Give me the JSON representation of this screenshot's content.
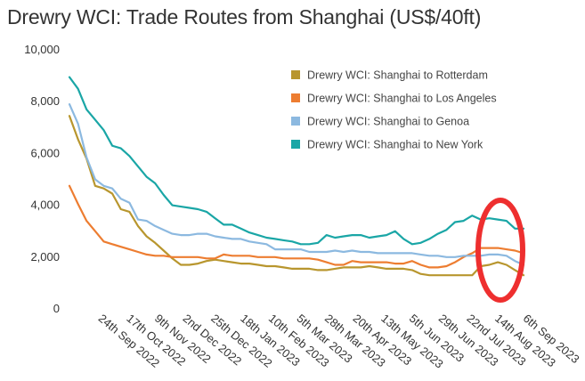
{
  "chart_data": {
    "type": "line",
    "title": "Drewry WCI: Trade Routes from Shanghai (US$/40ft)",
    "xlabel": "",
    "ylabel": "",
    "ylim": [
      0,
      10000
    ],
    "yticks": [
      "0",
      "2,000",
      "4,000",
      "6,000",
      "8,000",
      "10,000"
    ],
    "ytick_values": [
      0,
      2000,
      4000,
      6000,
      8000,
      10000
    ],
    "x": [
      "2022-09-01",
      "2022-09-08",
      "2022-09-15",
      "2022-09-22",
      "2022-09-29",
      "2022-10-06",
      "2022-10-13",
      "2022-10-20",
      "2022-10-27",
      "2022-11-03",
      "2022-11-10",
      "2022-11-17",
      "2022-11-24",
      "2022-12-01",
      "2022-12-08",
      "2022-12-15",
      "2022-12-22",
      "2022-12-29",
      "2023-01-05",
      "2023-01-12",
      "2023-01-19",
      "2023-01-26",
      "2023-02-02",
      "2023-02-09",
      "2023-02-16",
      "2023-02-23",
      "2023-03-02",
      "2023-03-09",
      "2023-03-16",
      "2023-03-23",
      "2023-03-30",
      "2023-04-06",
      "2023-04-13",
      "2023-04-20",
      "2023-04-27",
      "2023-05-04",
      "2023-05-11",
      "2023-05-18",
      "2023-05-25",
      "2023-06-01",
      "2023-06-08",
      "2023-06-15",
      "2023-06-22",
      "2023-06-29",
      "2023-07-06",
      "2023-07-13",
      "2023-07-20",
      "2023-07-27",
      "2023-08-03",
      "2023-08-10",
      "2023-08-17",
      "2023-08-24",
      "2023-08-31",
      "2023-09-07"
    ],
    "xticks": [
      "24th Sep 2022",
      "17th Oct 2022",
      "9th Nov 2022",
      "2nd Dec 2022",
      "25th Dec 2022",
      "18th Jan 2023",
      "10th Feb 2023",
      "5th Mar 2023",
      "28th Mar 2023",
      "20th Apr 2023",
      "13th May 2023",
      "5th Jun 2023",
      "29th Jun 2023",
      "22nd Jul 2023",
      "14th Aug 2023",
      "6th Sep 2023"
    ],
    "xtick_dates": [
      "2022-09-24",
      "2022-10-17",
      "2022-11-09",
      "2022-12-02",
      "2022-12-25",
      "2023-01-18",
      "2023-02-10",
      "2023-03-05",
      "2023-03-28",
      "2023-04-20",
      "2023-05-13",
      "2023-06-05",
      "2023-06-29",
      "2023-07-22",
      "2023-08-14",
      "2023-09-06"
    ],
    "series": [
      {
        "name": "Drewry WCI: Shanghai to Rotterdam",
        "color": "#b8962e",
        "values": [
          7450,
          6550,
          5800,
          4750,
          4650,
          4450,
          3850,
          3750,
          3200,
          2800,
          2550,
          2250,
          1950,
          1700,
          1700,
          1750,
          1850,
          1900,
          1850,
          1800,
          1750,
          1750,
          1700,
          1650,
          1650,
          1600,
          1550,
          1550,
          1550,
          1500,
          1500,
          1550,
          1600,
          1600,
          1600,
          1650,
          1600,
          1550,
          1550,
          1550,
          1500,
          1350,
          1300,
          1300,
          1300,
          1300,
          1300,
          1300,
          1650,
          1700,
          1800,
          1700,
          1500,
          1300
        ]
      },
      {
        "name": "Drewry WCI: Shanghai to Los Angeles",
        "color": "#ed7d31",
        "values": [
          4750,
          4050,
          3400,
          3000,
          2600,
          2500,
          2400,
          2300,
          2200,
          2100,
          2050,
          2050,
          2000,
          2000,
          2000,
          2000,
          1950,
          1950,
          2100,
          2050,
          2050,
          2050,
          2000,
          2000,
          2000,
          1950,
          1950,
          1950,
          1950,
          1900,
          1800,
          1700,
          1700,
          1850,
          1800,
          1800,
          1800,
          1800,
          1750,
          1750,
          1850,
          1700,
          1600,
          1600,
          1650,
          1800,
          2000,
          2150,
          2350,
          2350,
          2350,
          2300,
          2250,
          2150
        ]
      },
      {
        "name": "Drewry WCI: Shanghai to Genoa",
        "color": "#8cb9e0",
        "values": [
          7900,
          7150,
          5850,
          5000,
          4750,
          4650,
          4250,
          4100,
          3450,
          3400,
          3200,
          3050,
          2900,
          2850,
          2850,
          2900,
          2900,
          2800,
          2750,
          2700,
          2700,
          2600,
          2550,
          2500,
          2300,
          2300,
          2300,
          2300,
          2200,
          2200,
          2200,
          2250,
          2200,
          2250,
          2200,
          2200,
          2150,
          2150,
          2150,
          2150,
          2150,
          2100,
          2050,
          2050,
          2000,
          2000,
          2050,
          2050,
          2050,
          2100,
          2100,
          2050,
          1850,
          1700
        ]
      },
      {
        "name": "Drewry WCI: Shanghai to New York",
        "color": "#1aa6a6",
        "values": [
          8950,
          8500,
          7700,
          7300,
          6900,
          6300,
          6200,
          5900,
          5500,
          5100,
          4850,
          4400,
          4000,
          3950,
          3900,
          3850,
          3750,
          3500,
          3250,
          3250,
          3100,
          2950,
          2850,
          2750,
          2700,
          2650,
          2600,
          2500,
          2500,
          2550,
          2850,
          2750,
          2800,
          2850,
          2850,
          2750,
          2800,
          2850,
          3000,
          2700,
          2500,
          2550,
          2700,
          2900,
          3050,
          3350,
          3400,
          3600,
          3450,
          3500,
          3450,
          3400,
          3100,
          3100
        ]
      }
    ],
    "legend_position": "top-right",
    "grid": false,
    "annotation": {
      "type": "ellipse",
      "color": "#ee2f2f",
      "description": "red circle highlighting last data points"
    }
  }
}
